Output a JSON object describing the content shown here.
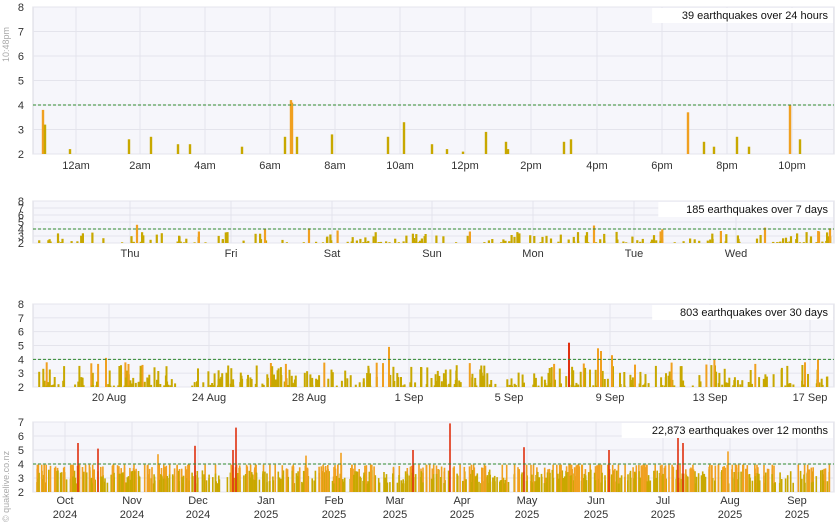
{
  "side_labels": {
    "time": "10:48pm",
    "source": "© quakelive.co.nz"
  },
  "colors": {
    "bar_low": "#c8a800",
    "bar_mid": "#f0a020",
    "bar_high": "#e03010",
    "ref_line": "#2e8b2e",
    "grid": "#e4e4ec",
    "plot_bg": "#f6f6fb",
    "axis_text": "#333333"
  },
  "chart_data": [
    {
      "type": "bar",
      "summary": "39 earthquakes over 24 hours",
      "ylim": [
        2,
        8
      ],
      "yticks": [
        "2",
        "3",
        "4",
        "5",
        "6",
        "7",
        "8"
      ],
      "reference_line": 4,
      "xticks": [
        "12am",
        "2am",
        "4am",
        "6am",
        "8am",
        "10am",
        "12pm",
        "2pm",
        "4pm",
        "6pm",
        "8pm",
        "10pm"
      ],
      "values": [
        3.8,
        3.2,
        2.2,
        2.6,
        2.7,
        2.4,
        2.4,
        2.3,
        2.7,
        4.2,
        4.1,
        2.7,
        2.8,
        2.7,
        3.3,
        2.4,
        2.2,
        2.1,
        2.9,
        2.5,
        2.2,
        2.5,
        2.6,
        3.7,
        2.5,
        2.3,
        2.7,
        2.3,
        4.0,
        2.6
      ]
    },
    {
      "type": "bar",
      "summary": "185 earthquakes over 7 days",
      "ylim": [
        2,
        8
      ],
      "yticks": [
        "2",
        "3",
        "4",
        "5",
        "6",
        "7",
        "8"
      ],
      "reference_line": 4,
      "xticks": [
        "Thu",
        "Fri",
        "Sat",
        "Sun",
        "Mon",
        "Tue",
        "Wed"
      ]
    },
    {
      "type": "bar",
      "summary": "803 earthquakes over 30 days",
      "ylim": [
        2,
        8
      ],
      "yticks": [
        "2",
        "3",
        "4",
        "5",
        "6",
        "7",
        "8"
      ],
      "reference_line": 4,
      "xticks": [
        "20 Aug",
        "24 Aug",
        "28 Aug",
        "1 Sep",
        "5 Sep",
        "9 Sep",
        "13 Sep",
        "17 Sep"
      ]
    },
    {
      "type": "bar",
      "summary": "22,873 earthquakes over 12 months",
      "ylim": [
        2,
        7
      ],
      "yticks": [
        "2",
        "3",
        "4",
        "5",
        "6",
        "7"
      ],
      "reference_line": 4,
      "xticks": [
        {
          "month": "Oct",
          "year": "2024"
        },
        {
          "month": "Nov",
          "year": "2024"
        },
        {
          "month": "Dec",
          "year": "2024"
        },
        {
          "month": "Jan",
          "year": "2025"
        },
        {
          "month": "Feb",
          "year": "2025"
        },
        {
          "month": "Mar",
          "year": "2025"
        },
        {
          "month": "Apr",
          "year": "2025"
        },
        {
          "month": "May",
          "year": "2025"
        },
        {
          "month": "Jun",
          "year": "2025"
        },
        {
          "month": "Jul",
          "year": "2025"
        },
        {
          "month": "Aug",
          "year": "2025"
        },
        {
          "month": "Sep",
          "year": "2025"
        }
      ]
    }
  ]
}
